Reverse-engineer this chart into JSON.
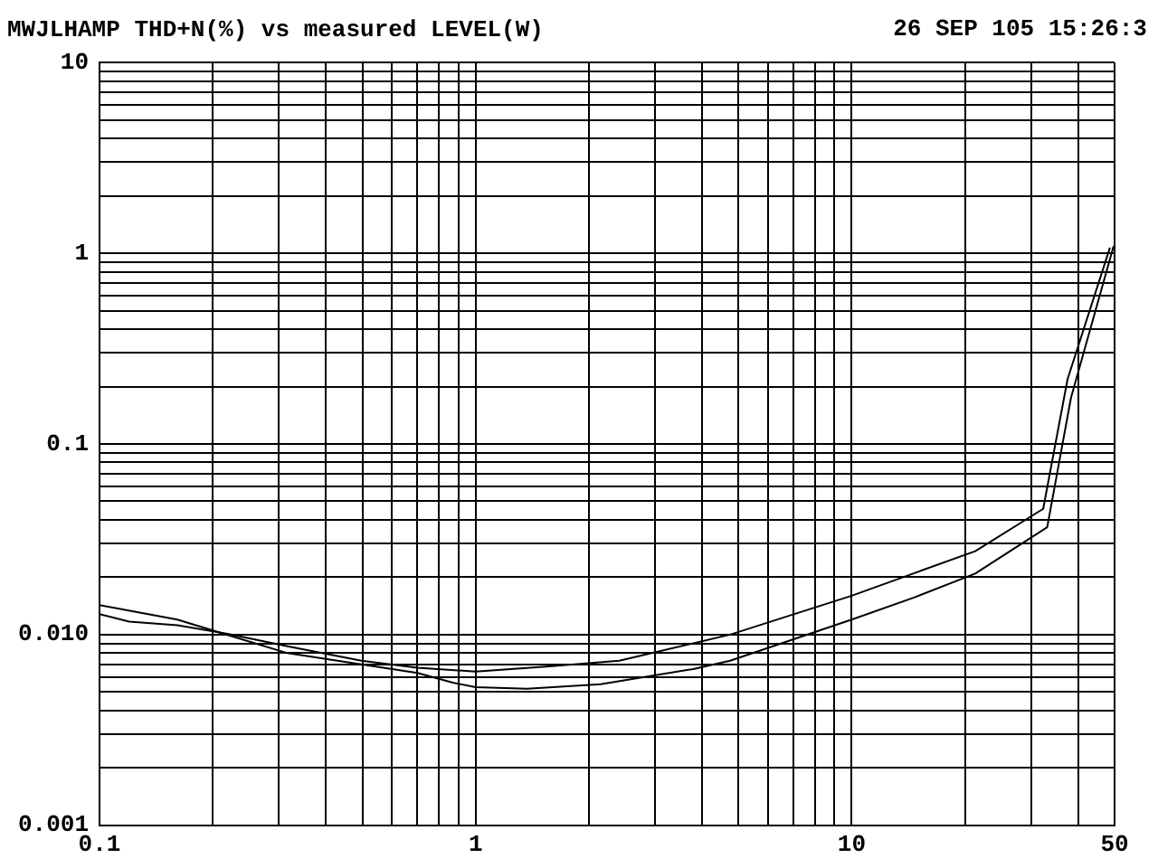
{
  "chart_data": {
    "type": "line",
    "title": "MWJLHAMP THD+N(%) vs measured LEVEL(W)",
    "annotations": [
      "26 SEP 105 15:26:3"
    ],
    "log": "xy",
    "grid": true,
    "legend": false,
    "marker": "none",
    "line_style": "solid",
    "xlim": [
      0.1,
      50
    ],
    "ylim": [
      0.001,
      10
    ],
    "xticks": [
      0.1,
      {
        "value": 0.2,
        "label": null
      },
      {
        "value": 0.3,
        "label": null
      },
      {
        "value": 0.4,
        "label": null
      },
      {
        "value": 0.5,
        "label": null
      },
      {
        "value": 0.6,
        "label": null
      },
      {
        "value": 0.7,
        "label": null
      },
      {
        "value": 0.8,
        "label": null
      },
      {
        "value": 0.9,
        "label": null
      },
      1,
      {
        "value": 2,
        "label": null
      },
      {
        "value": 3,
        "label": null
      },
      {
        "value": 4,
        "label": null
      },
      {
        "value": 5,
        "label": null
      },
      {
        "value": 6,
        "label": null
      },
      {
        "value": 7,
        "label": null
      },
      {
        "value": 8,
        "label": null
      },
      {
        "value": 9,
        "label": null
      },
      10,
      {
        "value": 20,
        "label": null
      },
      {
        "value": 30,
        "label": null
      },
      {
        "value": 40,
        "label": null
      },
      50
    ],
    "yticks": [
      0.001,
      {
        "value": 0.002,
        "label": null
      },
      {
        "value": 0.003,
        "label": null
      },
      {
        "value": 0.004,
        "label": null
      },
      {
        "value": 0.005,
        "label": null
      },
      {
        "value": 0.006,
        "label": null
      },
      {
        "value": 0.007,
        "label": null
      },
      {
        "value": 0.008,
        "label": null
      },
      {
        "value": 0.009,
        "label": null
      },
      {
        "value": 0.01,
        "label": "0.010"
      },
      {
        "value": 0.02,
        "label": null
      },
      {
        "value": 0.03,
        "label": null
      },
      {
        "value": 0.04,
        "label": null
      },
      {
        "value": 0.05,
        "label": null
      },
      {
        "value": 0.06,
        "label": null
      },
      {
        "value": 0.07,
        "label": null
      },
      {
        "value": 0.08,
        "label": null
      },
      {
        "value": 0.09,
        "label": null
      },
      0.1,
      {
        "value": 0.2,
        "label": null
      },
      {
        "value": 0.3,
        "label": null
      },
      {
        "value": 0.4,
        "label": null
      },
      {
        "value": 0.5,
        "label": null
      },
      {
        "value": 0.6,
        "label": null
      },
      {
        "value": 0.7,
        "label": null
      },
      {
        "value": 0.8,
        "label": null
      },
      {
        "value": 0.9,
        "label": null
      },
      1,
      {
        "value": 2,
        "label": null
      },
      {
        "value": 3,
        "label": null
      },
      {
        "value": 4,
        "label": null
      },
      {
        "value": 5,
        "label": null
      },
      {
        "value": 6,
        "label": null
      },
      {
        "value": 7,
        "label": null
      },
      {
        "value": 8,
        "label": null
      },
      {
        "value": 9,
        "label": null
      },
      10
    ],
    "series": [
      {
        "color": "#000000",
        "x": [
          0.1,
          0.161,
          0.225,
          0.316,
          0.47,
          0.7,
          0.87,
          1,
          1.37,
          2.15,
          3.79,
          4.75,
          10,
          14.7,
          21.3,
          33.1,
          38.3,
          49.7
        ],
        "values": [
          0.0143,
          0.012,
          0.0098,
          0.008,
          0.0071,
          0.0063,
          0.0056,
          0.0053,
          0.0052,
          0.0055,
          0.0066,
          0.0073,
          0.012,
          0.0157,
          0.0209,
          0.0366,
          0.175,
          1.09
        ]
      },
      {
        "color": "#000000",
        "x": [
          0.1,
          0.12,
          0.161,
          0.225,
          0.316,
          0.497,
          0.7,
          1,
          1.54,
          2.41,
          4.75,
          10,
          21.3,
          32.3,
          37.5,
          48.6
        ],
        "values": [
          0.0128,
          0.0117,
          0.0112,
          0.01,
          0.0087,
          0.0073,
          0.0067,
          0.0064,
          0.0068,
          0.0073,
          0.01,
          0.016,
          0.0274,
          0.0457,
          0.219,
          1.07
        ]
      }
    ]
  }
}
